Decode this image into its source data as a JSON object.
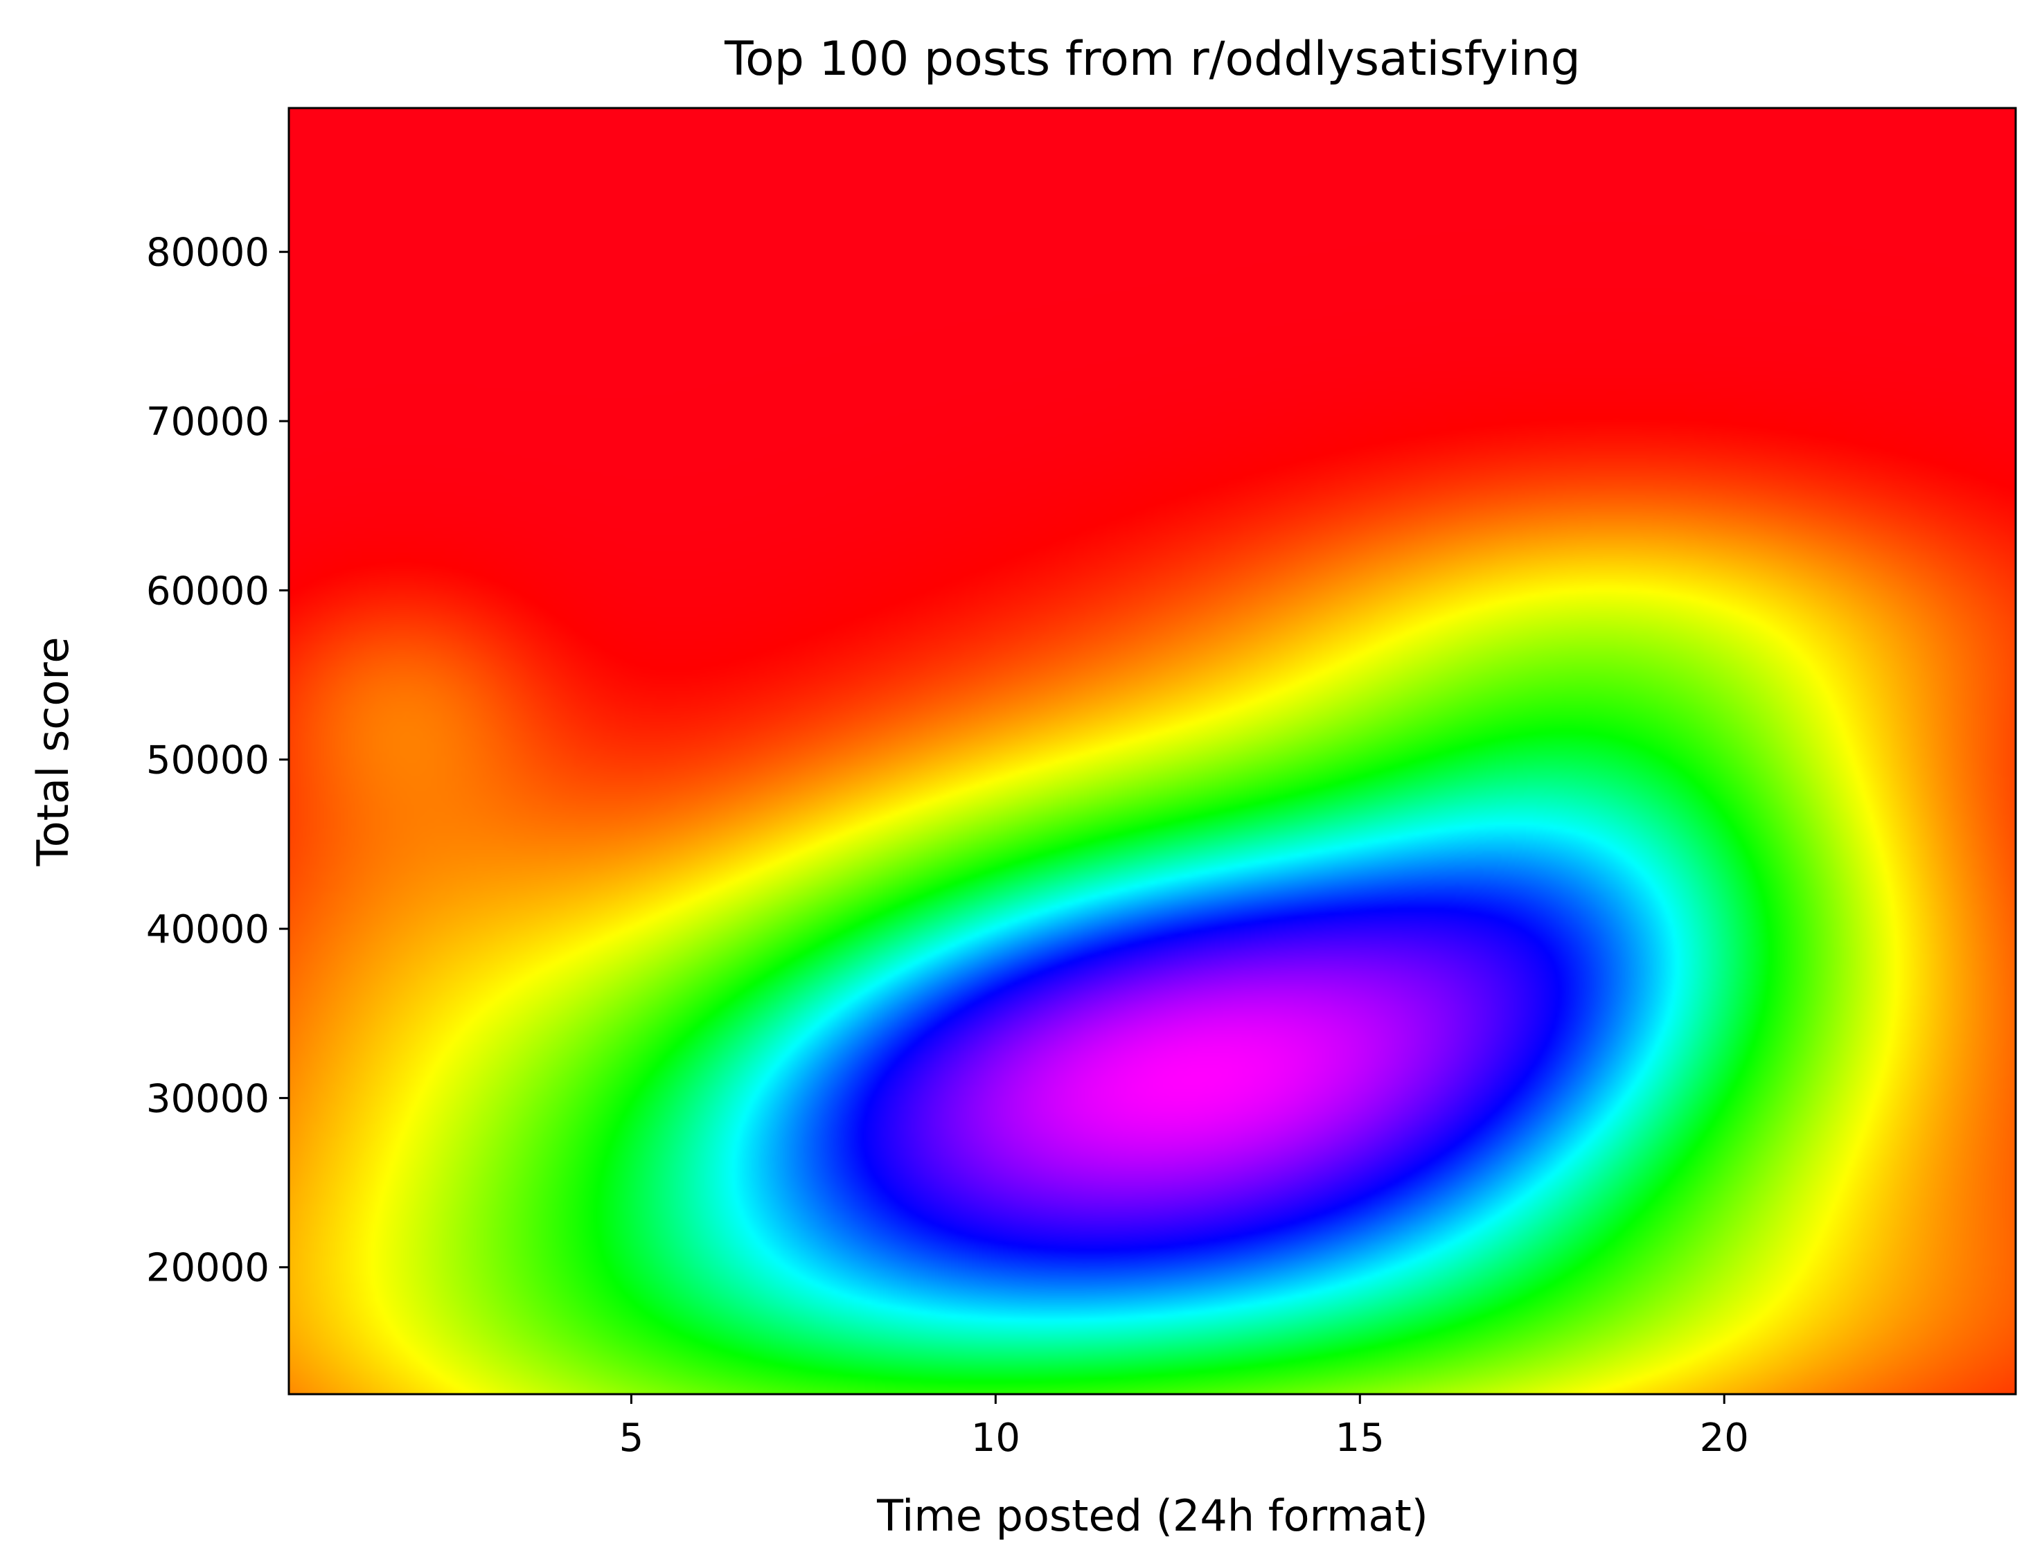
{
  "chart_data": {
    "type": "heatmap",
    "title": "Top 100 posts from r/oddlysatisfying",
    "xlabel": "Time posted (24h format)",
    "ylabel": "Total score",
    "xlim": [
      0.3,
      24
    ],
    "ylim": [
      12500,
      88500
    ],
    "xticks": [
      5,
      10,
      15,
      20
    ],
    "xtick_labels": [
      "5",
      "10",
      "15",
      "20"
    ],
    "yticks": [
      20000,
      30000,
      40000,
      50000,
      60000,
      70000,
      80000
    ],
    "ytick_labels": [
      "20000",
      "30000",
      "40000",
      "50000",
      "60000",
      "70000",
      "80000"
    ],
    "colormap": "gist_rainbow",
    "grid": false,
    "colorbar": false,
    "density_peaks": [
      {
        "x": 13.5,
        "y": 33500,
        "level": "highest (magenta)"
      },
      {
        "x": 8.5,
        "y": 30000,
        "level": "high (blue)"
      },
      {
        "x": 18.5,
        "y": 44000,
        "level": "high (blue)"
      },
      {
        "x": 1.8,
        "y": 53500,
        "level": "medium-low (yellow)"
      }
    ],
    "colors": {
      "lowest": "#ff0029",
      "low": "#ff0000",
      "medium_low": "#ffff00",
      "medium": "#00ff00",
      "medium_high": "#00ffff",
      "high": "#0000ff",
      "highest": "#ff00ff"
    }
  }
}
